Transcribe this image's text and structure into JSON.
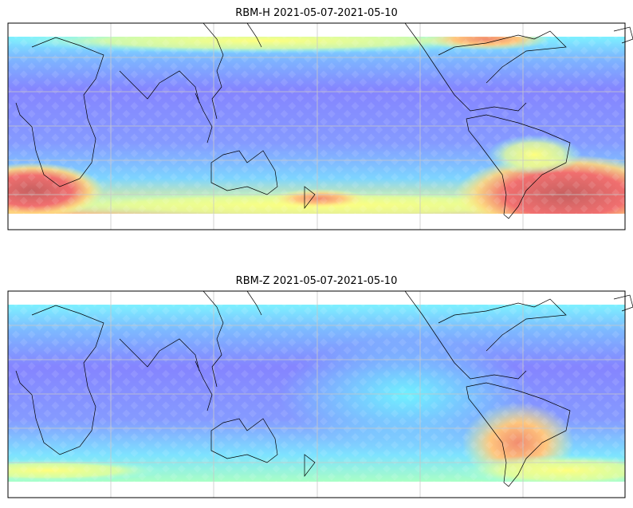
{
  "panels": [
    {
      "title": "RBM-H 2021-05-07-2021-05-10"
    },
    {
      "title": "RBM-Z 2021-05-07-2021-05-10"
    }
  ]
}
